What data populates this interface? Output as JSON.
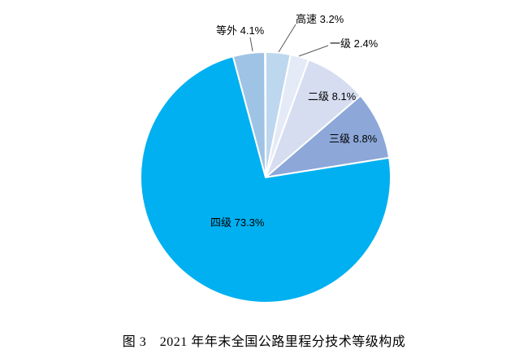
{
  "chart_data": {
    "type": "pie",
    "title": "图 3　2021 年年末全国公路里程分技术等级构成",
    "categories": [
      "高速",
      "一级",
      "二级",
      "三级",
      "四级",
      "等外"
    ],
    "values": [
      3.2,
      2.4,
      8.1,
      8.8,
      73.3,
      4.1
    ],
    "unit": "%",
    "labels": [
      "高速 3.2%",
      "一级 2.4%",
      "二级 8.1%",
      "三级 8.8%",
      "四级 73.3%",
      "等外 4.1%"
    ],
    "colors": [
      "#BDD7EE",
      "#E4EAF6",
      "#D6DDF0",
      "#8CA7D8",
      "#00B0F0",
      "#9EC3E5"
    ],
    "slice_border_color": "#FFFFFF",
    "leader_line_color": "#595959",
    "start_angle_deg": 0,
    "direction": "clockwise",
    "legend": "none",
    "background": "#FFFFFF"
  }
}
